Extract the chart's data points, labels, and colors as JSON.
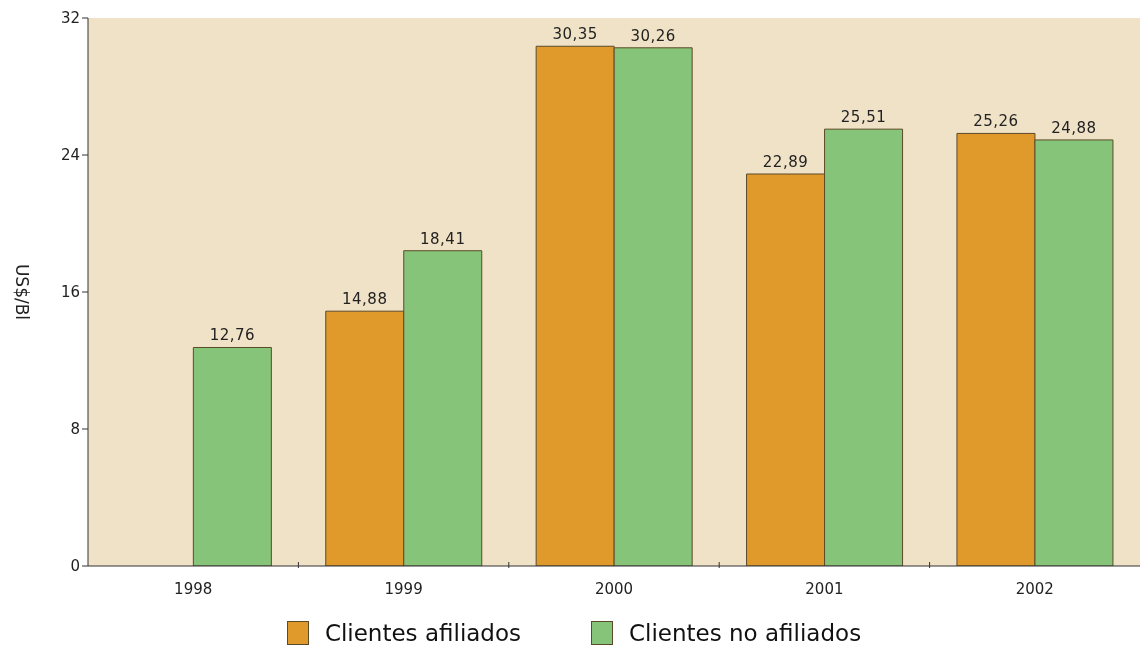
{
  "chart_data": {
    "type": "bar",
    "ylabel": "US$/Bl",
    "categories": [
      "1998",
      "1999",
      "2000",
      "2001",
      "2002"
    ],
    "series": [
      {
        "name": "Clientes afiliados",
        "color": "#e09a2b",
        "values": [
          null,
          14.88,
          30.35,
          22.89,
          25.26
        ],
        "value_labels": [
          null,
          "14,88",
          "30,35",
          "22,89",
          "25,26"
        ]
      },
      {
        "name": "Clientes no afiliados",
        "color": "#86c47a",
        "values": [
          12.76,
          18.41,
          30.26,
          25.51,
          24.88
        ],
        "value_labels": [
          "12,76",
          "18,41",
          "30,26",
          "25,51",
          "24,88"
        ]
      }
    ],
    "ylim": [
      0,
      32
    ],
    "yticks": [
      0,
      8,
      16,
      24,
      32
    ],
    "legend": "bottom"
  }
}
